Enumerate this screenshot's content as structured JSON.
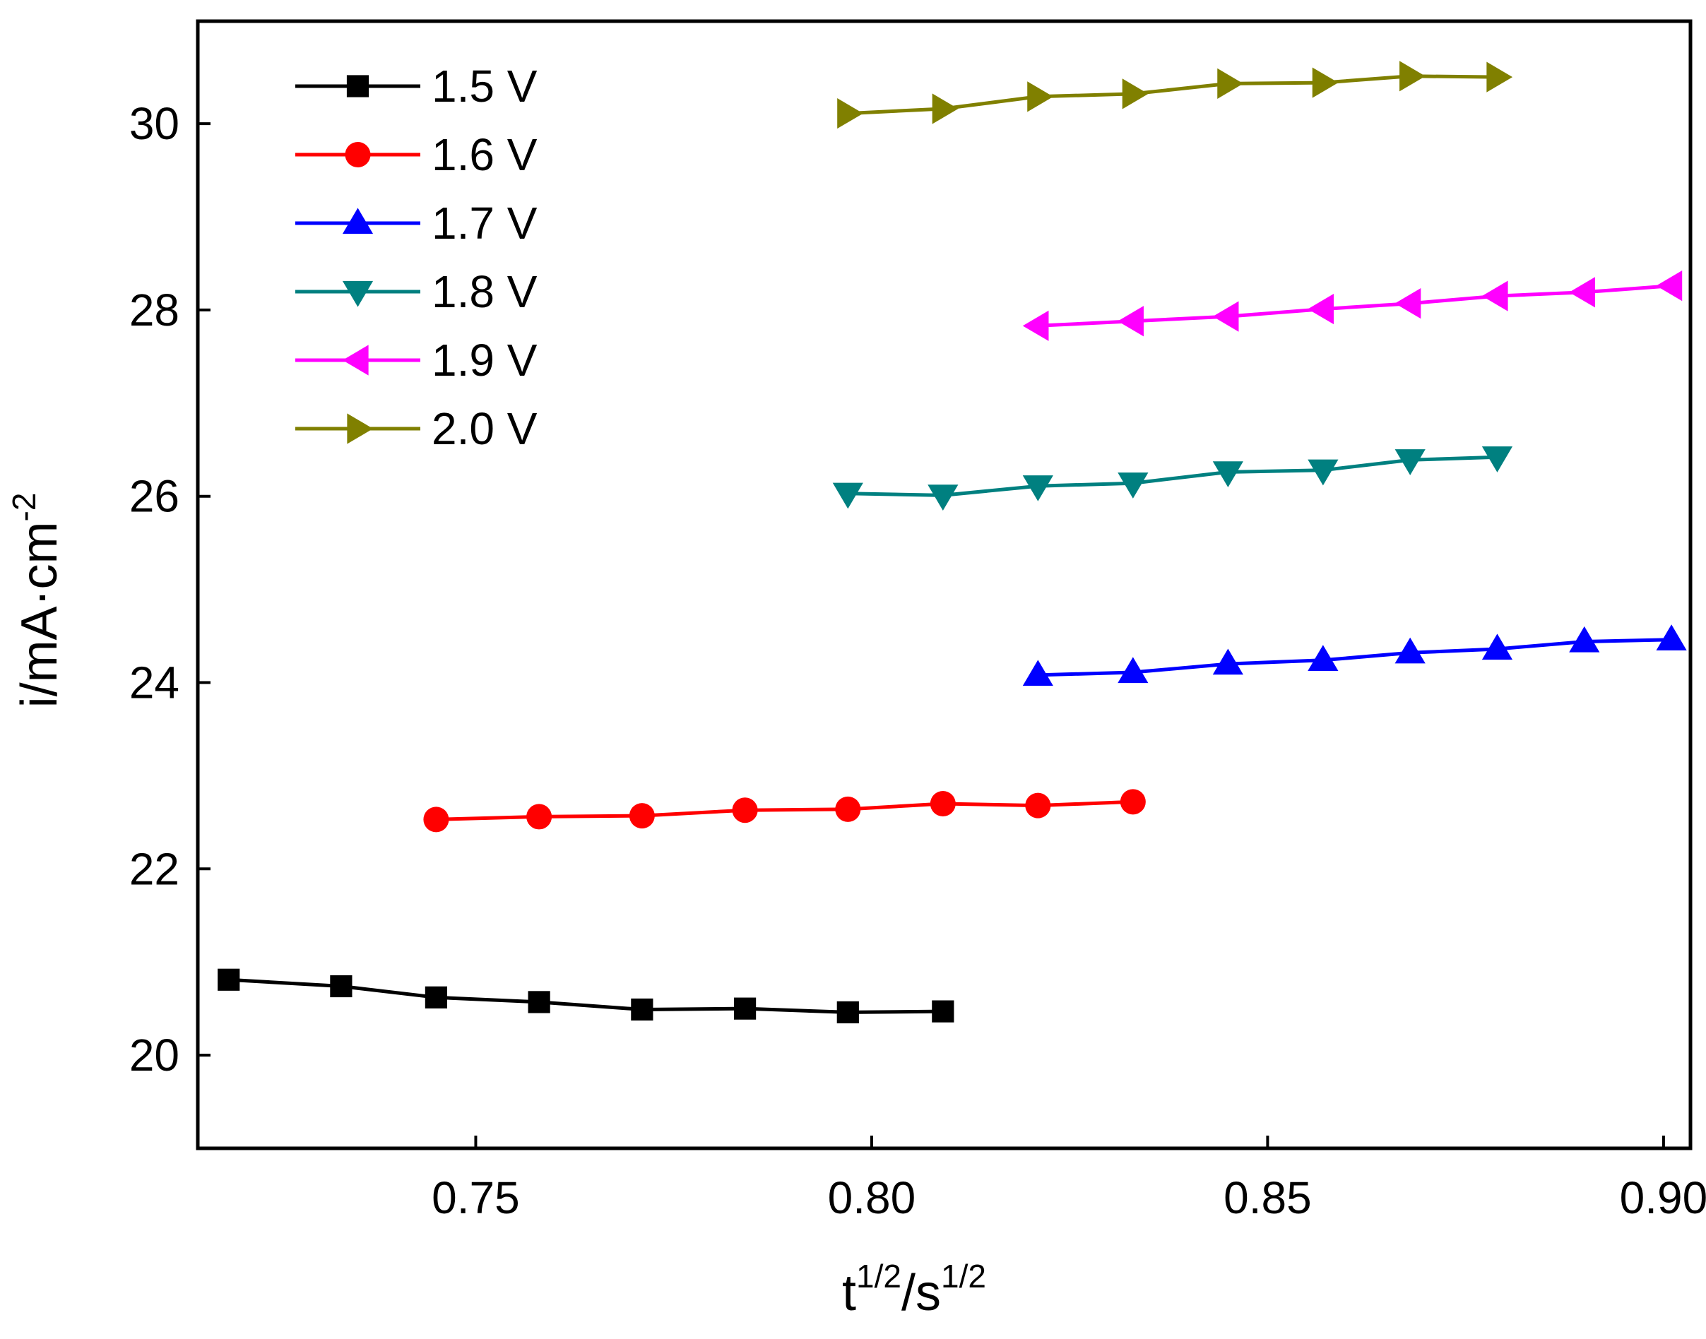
{
  "chart_data": {
    "type": "line",
    "title": "",
    "xlabel": {
      "base": "t",
      "sup": "1/2",
      "mid": "/s",
      "sup2": "1/2"
    },
    "ylabel": {
      "base": "i/mA·cm",
      "sup": "-2"
    },
    "xlim": [
      0.7149,
      0.9034
    ],
    "ylim": [
      19.0,
      31.1
    ],
    "x_ticks": [
      0.75,
      0.8,
      0.85,
      0.9
    ],
    "x_tick_labels": [
      "0.75",
      "0.80",
      "0.85",
      "0.90"
    ],
    "y_ticks": [
      20,
      22,
      24,
      26,
      28,
      30
    ],
    "y_tick_labels": [
      "20",
      "22",
      "24",
      "26",
      "28",
      "30"
    ],
    "grid": false,
    "legend_position": "top-left",
    "series": [
      {
        "name": "1.5 V",
        "color": "#000000",
        "marker": "square",
        "x": [
          0.7188,
          0.733,
          0.745,
          0.758,
          0.771,
          0.784,
          0.797,
          0.809
        ],
        "y": [
          20.81,
          20.74,
          20.62,
          20.57,
          20.49,
          20.5,
          20.46,
          20.47
        ]
      },
      {
        "name": "1.6 V",
        "color": "#ff0000",
        "marker": "circle",
        "x": [
          0.745,
          0.758,
          0.771,
          0.784,
          0.797,
          0.809,
          0.821,
          0.833
        ],
        "y": [
          22.53,
          22.56,
          22.57,
          22.63,
          22.64,
          22.7,
          22.68,
          22.72
        ]
      },
      {
        "name": "1.7 V",
        "color": "#0000ff",
        "marker": "triangle-up",
        "x": [
          0.821,
          0.833,
          0.845,
          0.857,
          0.868,
          0.879,
          0.89,
          0.901
        ],
        "y": [
          24.08,
          24.11,
          24.2,
          24.24,
          24.32,
          24.36,
          24.44,
          24.46
        ]
      },
      {
        "name": "1.8 V",
        "color": "#008080",
        "marker": "triangle-down",
        "x": [
          0.797,
          0.809,
          0.821,
          0.833,
          0.845,
          0.857,
          0.868,
          0.879
        ],
        "y": [
          26.03,
          26.01,
          26.11,
          26.14,
          26.26,
          26.28,
          26.39,
          26.42
        ]
      },
      {
        "name": "1.9 V",
        "color": "#ff00ff",
        "marker": "triangle-left",
        "x": [
          0.821,
          0.833,
          0.845,
          0.857,
          0.868,
          0.879,
          0.89,
          0.901
        ],
        "y": [
          27.83,
          27.88,
          27.93,
          28.01,
          28.07,
          28.15,
          28.19,
          28.26
        ]
      },
      {
        "name": "2.0 V",
        "color": "#808000",
        "marker": "triangle-right",
        "x": [
          0.797,
          0.809,
          0.821,
          0.833,
          0.845,
          0.857,
          0.868,
          0.879
        ],
        "y": [
          30.11,
          30.16,
          30.29,
          30.32,
          30.43,
          30.44,
          30.51,
          30.5
        ]
      }
    ]
  }
}
